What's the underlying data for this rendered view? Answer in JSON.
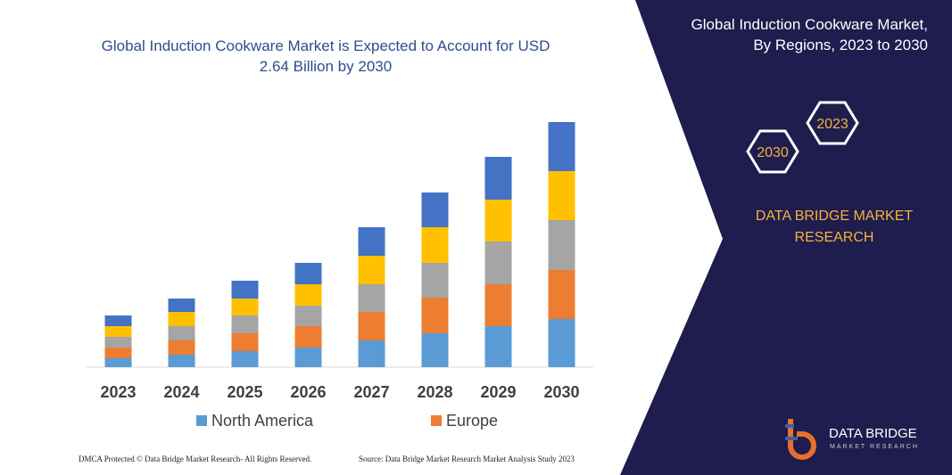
{
  "chart_data": {
    "type": "bar",
    "stacked": true,
    "title": "Global Induction Cookware Market is Expected to Account for USD 2.64 Billion by 2030",
    "categories": [
      "2023",
      "2024",
      "2025",
      "2026",
      "2027",
      "2028",
      "2029",
      "2030"
    ],
    "series": [
      {
        "name": "North America",
        "color": "#5b9bd5",
        "values": [
          10,
          14,
          18,
          22,
          30,
          38,
          46,
          54
        ]
      },
      {
        "name": "Europe",
        "color": "#ed7d31",
        "values": [
          12,
          16,
          20,
          24,
          32,
          40,
          47,
          55
        ]
      },
      {
        "color": "#a5a5a5",
        "values": [
          12,
          16,
          20,
          23,
          31,
          39,
          48,
          56
        ]
      },
      {
        "color": "#ffc000",
        "values": [
          12,
          16,
          19,
          24,
          32,
          40,
          47,
          55
        ]
      },
      {
        "color": "#4472c4",
        "values": [
          12,
          15,
          20,
          24,
          32,
          39,
          48,
          55
        ]
      }
    ],
    "ylim": [
      0,
      275
    ],
    "legend": "bottom"
  },
  "panel": {
    "title": "Global Induction Cookware Market, By Regions, 2023 to 2030",
    "hexagons": [
      "2023",
      "2030"
    ],
    "brand": "DATA BRIDGE MARKET RESEARCH"
  },
  "logo": {
    "name": "DATA BRIDGE",
    "tagline": "MARKET RESEARCH"
  },
  "footer": {
    "left": "DMCA Protected © Data Bridge Market Research- All Rights Reserved.",
    "right": "Source: Data Bridge Market Research  Market Analysis Study 2023"
  }
}
